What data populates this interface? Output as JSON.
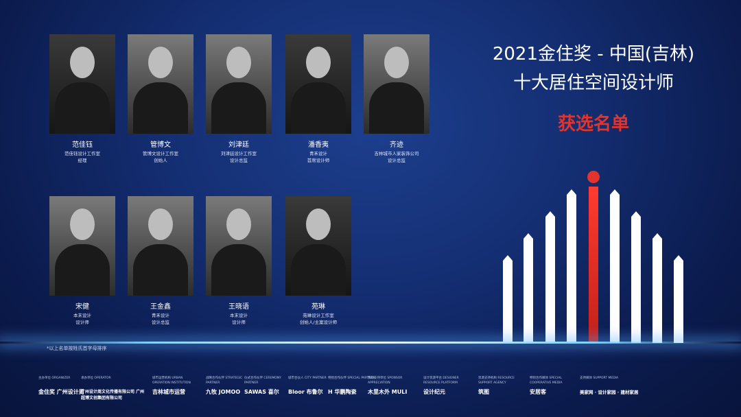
{
  "title": {
    "line1": "2021金住奖 - 中国(吉林)",
    "line2": "十大居住空间设计师",
    "selected": "获选名单"
  },
  "designers": [
    {
      "name": "范佳钰",
      "studio": "范佳钰设计工作室",
      "role": "经理"
    },
    {
      "name": "管博文",
      "studio": "管博文设计工作室",
      "role": "创始人"
    },
    {
      "name": "刘津廷",
      "studio": "刘津廷设计工作室",
      "role": "设计总监"
    },
    {
      "name": "潘香夷",
      "studio": "青禾设计",
      "role": "首席设计师"
    },
    {
      "name": "齐迹",
      "studio": "吉林城市人家装饰公司",
      "role": "设计总监"
    },
    {
      "name": "宋健",
      "studio": "本末设计",
      "role": "设计师"
    },
    {
      "name": "王金鑫",
      "studio": "青禾设计",
      "role": "设计总监"
    },
    {
      "name": "王晓语",
      "studio": "本末设计",
      "role": "设计师"
    },
    {
      "name": "苑琳",
      "studio": "苑琳设计工作室",
      "role": "创始人/主案设计师"
    }
  ],
  "note": "*以上名单按姓氏首字母排序",
  "sponsors": [
    {
      "label": "主办单位 ORGANIZER",
      "logo": "金住奖 广州设计周"
    },
    {
      "label": "承办单位 OPERATOR",
      "logo": "广州设计周文化传播有限公司  广州超博文创集团有限公司"
    },
    {
      "label": "城市运营机构 URBAN OPERATION INSTITUTION",
      "logo": "吉林城市运营"
    },
    {
      "label": "战略合作伙伴 STRATEGIC PARTNER",
      "logo": "九牧 JOMOO"
    },
    {
      "label": "仪式合作伙伴 CEREMONY PARTNER",
      "logo": "SAWAS 喜尔"
    },
    {
      "label": "城市合伙人 CITY PARTNER",
      "logo": "Bloor 布鲁尔"
    },
    {
      "label": "特别合作伙伴 SPECIAL PARTNER",
      "logo": "H 华鹏陶瓷"
    },
    {
      "label": "赞助支持单位 SPONSOR APPRECIATION",
      "logo": "木里木外 MULI"
    },
    {
      "label": "设计资源平台 DESIGNER RESOURCE PLATFORM",
      "logo": "设计纪元"
    },
    {
      "label": "资源支持机构 RESOURCE SUPPORT AGENCY",
      "logo": "筑图"
    },
    {
      "label": "特别合作媒体 SPECIAL COOPERATIVE MEDIA",
      "logo": "安居客"
    },
    {
      "label": "支持媒体 SUPPORT MEDIA",
      "logo": "美家网 · 设计家园 · 建材家居"
    }
  ]
}
